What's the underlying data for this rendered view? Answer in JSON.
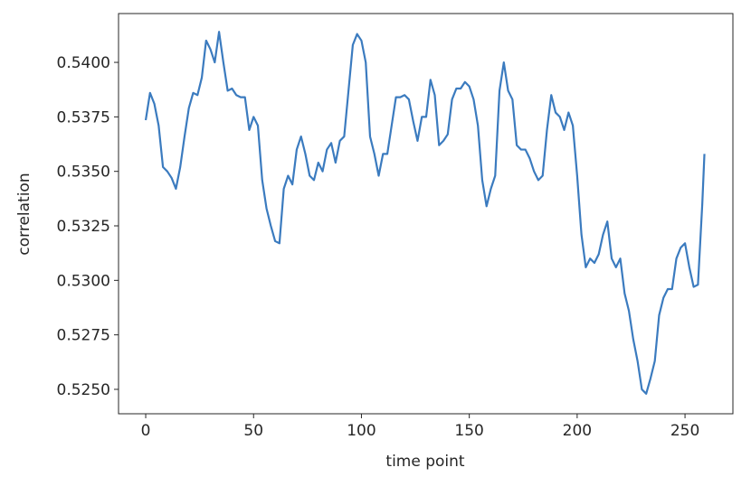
{
  "chart_data": {
    "type": "line",
    "xlabel": "time point",
    "ylabel": "correlation",
    "x": [
      0,
      2,
      4,
      6,
      8,
      10,
      12,
      14,
      16,
      18,
      20,
      22,
      24,
      26,
      28,
      30,
      32,
      34,
      36,
      38,
      40,
      42,
      44,
      46,
      48,
      50,
      52,
      54,
      56,
      58,
      60,
      62,
      64,
      66,
      68,
      70,
      72,
      74,
      76,
      78,
      80,
      82,
      84,
      86,
      88,
      90,
      92,
      94,
      96,
      98,
      100,
      102,
      104,
      106,
      108,
      110,
      112,
      114,
      116,
      118,
      120,
      122,
      124,
      126,
      128,
      130,
      132,
      134,
      136,
      138,
      140,
      142,
      144,
      146,
      148,
      150,
      152,
      154,
      156,
      158,
      160,
      162,
      164,
      166,
      168,
      170,
      172,
      174,
      176,
      178,
      180,
      182,
      184,
      186,
      188,
      190,
      192,
      194,
      196,
      198,
      200,
      202,
      204,
      206,
      208,
      210,
      212,
      214,
      216,
      218,
      220,
      222,
      224,
      226,
      228,
      230,
      232,
      234,
      236,
      238,
      240,
      242,
      244,
      246,
      248,
      250,
      252,
      254,
      256,
      258,
      259
    ],
    "series": [
      {
        "name": "correlation",
        "color": "#3b7bbf",
        "values": [
          0.53735,
          0.5386,
          0.5381,
          0.5371,
          0.5352,
          0.535,
          0.5347,
          0.5342,
          0.5352,
          0.5366,
          0.5379,
          0.5386,
          0.5385,
          0.5393,
          0.541,
          0.5406,
          0.54,
          0.5414,
          0.54,
          0.5387,
          0.5388,
          0.5385,
          0.5384,
          0.5384,
          0.5369,
          0.5375,
          0.5371,
          0.5346,
          0.5333,
          0.5325,
          0.5318,
          0.5317,
          0.5342,
          0.5348,
          0.5344,
          0.536,
          0.5366,
          0.5358,
          0.5348,
          0.5346,
          0.5354,
          0.535,
          0.536,
          0.5363,
          0.5354,
          0.5364,
          0.5366,
          0.5387,
          0.5408,
          0.5413,
          0.541,
          0.54,
          0.5366,
          0.5358,
          0.5348,
          0.5358,
          0.5358,
          0.5371,
          0.5384,
          0.5384,
          0.5385,
          0.5383,
          0.5373,
          0.5364,
          0.5375,
          0.5375,
          0.5392,
          0.5385,
          0.5362,
          0.5364,
          0.5367,
          0.5383,
          0.5388,
          0.5388,
          0.5391,
          0.5389,
          0.5383,
          0.5371,
          0.5346,
          0.5334,
          0.5342,
          0.5348,
          0.5387,
          0.54,
          0.5387,
          0.5383,
          0.5362,
          0.536,
          0.536,
          0.5356,
          0.535,
          0.5346,
          0.5348,
          0.5369,
          0.5385,
          0.5377,
          0.5375,
          0.5369,
          0.5377,
          0.5371,
          0.5348,
          0.5321,
          0.5306,
          0.531,
          0.5308,
          0.5312,
          0.5321,
          0.5327,
          0.531,
          0.5306,
          0.531,
          0.5294,
          0.5286,
          0.5273,
          0.5263,
          0.525,
          0.5248,
          0.5255,
          0.5263,
          0.5284,
          0.5292,
          0.5296,
          0.5296,
          0.531,
          0.5315,
          0.5317,
          0.5306,
          0.5297,
          0.5298,
          0.5335,
          0.5358
        ]
      }
    ],
    "xlim": [
      -12.6,
      272.2
    ],
    "ylim": [
      0.52388,
      0.54224
    ],
    "xticks": [
      0,
      50,
      100,
      150,
      200,
      250
    ],
    "yticks": [
      {
        "value": 0.525,
        "label": "0.5250"
      },
      {
        "value": 0.5275,
        "label": "0.5275"
      },
      {
        "value": 0.53,
        "label": "0.5300"
      },
      {
        "value": 0.5325,
        "label": "0.5325"
      },
      {
        "value": 0.535,
        "label": "0.5350"
      },
      {
        "value": 0.5375,
        "label": "0.5375"
      },
      {
        "value": 0.54,
        "label": "0.5400"
      }
    ],
    "grid": false
  }
}
